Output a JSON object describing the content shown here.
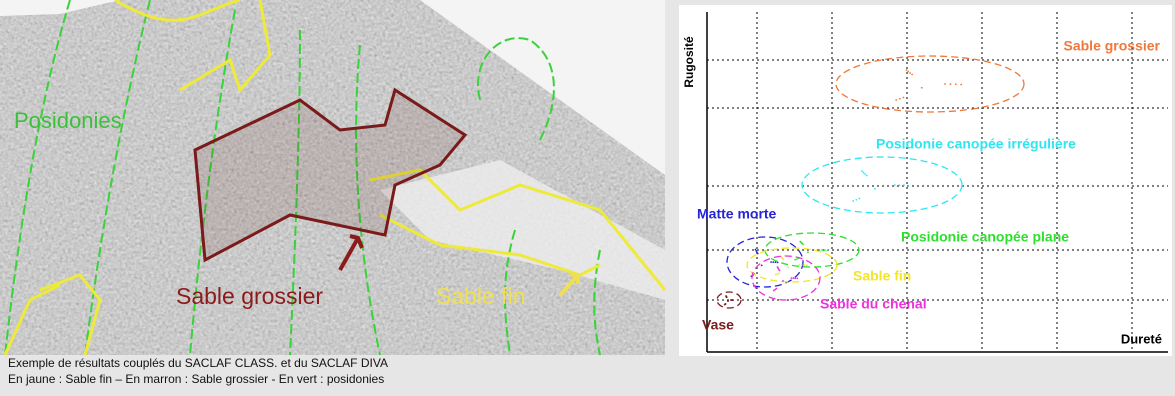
{
  "mosaic": {
    "labels": {
      "posidonies": "Posidonies",
      "sable_grossier": "Sable grossier",
      "sable_fin": "Sable fin"
    }
  },
  "caption": [
    "Exemple de résultats couplés du SACLAF CLASS. et du SACLAF DIVA",
    "En jaune : Sable fin – En marron : Sable grossier   - En vert : posidonies"
  ],
  "diagram": {
    "y_axis": "Rugosité",
    "x_axis": "Dureté",
    "classes": [
      {
        "label": "Sable grossier",
        "color": "#f0783a"
      },
      {
        "label": "Posidonie canopée irrégulière",
        "color": "#2ee6f2"
      },
      {
        "label": "Matte morte",
        "color": "#2424d8"
      },
      {
        "label": "Posidonie canopée plane",
        "color": "#2ee02e"
      },
      {
        "label": "Sable fin",
        "color": "#f2e626"
      },
      {
        "label": "Sable du chenal",
        "color": "#ee30e0"
      },
      {
        "label": "Vase",
        "color": "#7a1e1e"
      }
    ]
  }
}
